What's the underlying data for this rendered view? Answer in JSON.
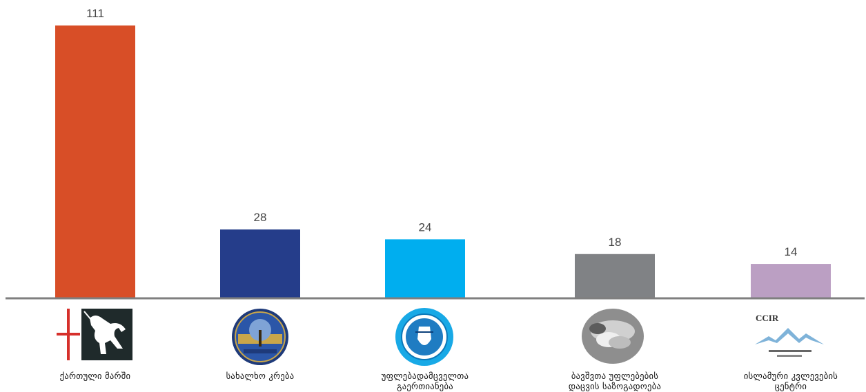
{
  "chart_data": {
    "type": "bar",
    "categories": [
      "ქართული მარში",
      "სახალხო კრება",
      "უფლებადამცველთა გაერთიანება",
      "ბავშვთა უფლებების დაცვის საზოგადოება",
      "ისლამური კვლევების ცენტრი"
    ],
    "category_lines": [
      [
        "ქართული მარში"
      ],
      [
        "სახალხო კრება"
      ],
      [
        "უფლებადამცველთა",
        "გაერთიანება"
      ],
      [
        "ბავშვთა უფლებების",
        "დაცვის საზოგადოება"
      ],
      [
        "ისლამური კვლევების",
        "ცენტრი"
      ]
    ],
    "values": [
      111,
      28,
      24,
      18,
      14
    ],
    "colors": [
      "#d84e27",
      "#253d8a",
      "#00aeef",
      "#808285",
      "#bb9fc3"
    ],
    "ylim": [
      0,
      111
    ],
    "grid": false,
    "legend": "none"
  },
  "logos": {
    "ccir_text": "CCIR"
  }
}
